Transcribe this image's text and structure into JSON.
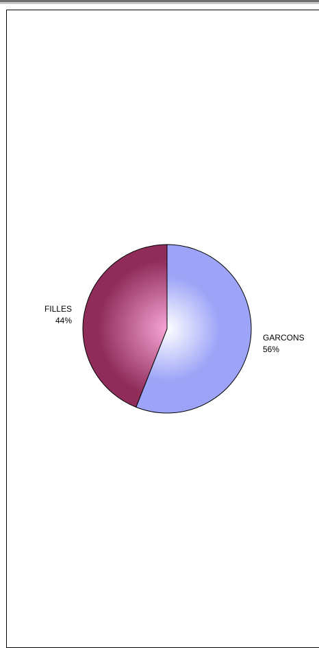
{
  "chart_data": {
    "type": "pie",
    "slices": [
      {
        "name": "GARCONS",
        "value": 56,
        "label": "56%",
        "color_light": "#ffffff",
        "color_dark": "#9da4f7"
      },
      {
        "name": "FILLES",
        "value": 44,
        "label": "44%",
        "color_light": "#f6a5d6",
        "color_dark": "#8f2c5a"
      }
    ]
  }
}
